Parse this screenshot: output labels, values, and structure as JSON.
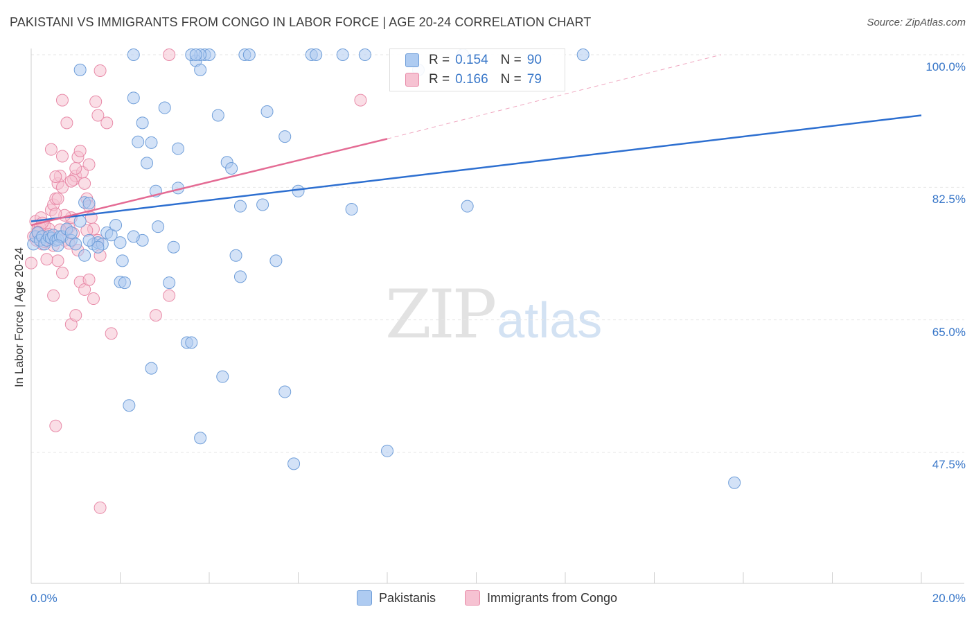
{
  "title": "PAKISTANI VS IMMIGRANTS FROM CONGO IN LABOR FORCE | AGE 20-24 CORRELATION CHART",
  "source": "Source: ZipAtlas.com",
  "watermark": {
    "zip": "ZIP",
    "atlas": "atlas"
  },
  "colors": {
    "blue_fill": "#aecbf1",
    "blue_stroke": "#6f9ed9",
    "blue_line": "#2d6fd0",
    "pink_fill": "#f6c2d2",
    "pink_stroke": "#e88aa8",
    "pink_line": "#e46b94",
    "grid": "#e6e6e6",
    "tick_label": "#3a78c9"
  },
  "legend": {
    "rows": [
      {
        "r_label": "R =",
        "r": "0.154",
        "n_label": "N =",
        "n": "90",
        "color": "#aecbf1"
      },
      {
        "r_label": "R =",
        "r": "0.166",
        "n_label": "N =",
        "n": "79",
        "color": "#f6c2d2"
      }
    ]
  },
  "bottom_legend": [
    {
      "label": "Pakistanis",
      "color": "#aecbf1"
    },
    {
      "label": "Immigrants from Congo",
      "color": "#f6c2d2"
    }
  ],
  "chart_data": {
    "type": "scatter",
    "title": "PAKISTANI VS IMMIGRANTS FROM CONGO IN LABOR FORCE | AGE 20-24 CORRELATION CHART",
    "xlabel": "",
    "ylabel": "In Labor Force | Age 20-24",
    "xlim": [
      0,
      20
    ],
    "ylim": [
      32,
      102
    ],
    "x_tick_labels": [
      {
        "value": 0,
        "label": "0.0%"
      },
      {
        "value": 20,
        "label": "20.0%"
      }
    ],
    "y_ticks": [
      {
        "value": 100,
        "label": "100.0%"
      },
      {
        "value": 82.5,
        "label": "82.5%"
      },
      {
        "value": 65,
        "label": "65.0%"
      },
      {
        "value": 47.5,
        "label": "47.5%"
      }
    ],
    "series": [
      {
        "name": "Pakistanis",
        "r": 0.154,
        "n": 90,
        "trend": {
          "x0": 0,
          "y0": 78.0,
          "x1": 20,
          "y1": 92.0
        },
        "points": [
          [
            0.05,
            75.0
          ],
          [
            0.1,
            76.0
          ],
          [
            0.15,
            76.5
          ],
          [
            0.2,
            75.5
          ],
          [
            0.25,
            76.0
          ],
          [
            0.3,
            75.0
          ],
          [
            0.35,
            75.5
          ],
          [
            0.4,
            76.0
          ],
          [
            0.45,
            75.8
          ],
          [
            0.5,
            76.2
          ],
          [
            0.55,
            75.5
          ],
          [
            0.6,
            75.6
          ],
          [
            0.65,
            76.0
          ],
          [
            0.7,
            76.0
          ],
          [
            0.8,
            77.0
          ],
          [
            0.9,
            75.5
          ],
          [
            1.0,
            75.0
          ],
          [
            1.1,
            78.0
          ],
          [
            1.2,
            80.5
          ],
          [
            1.3,
            80.4
          ],
          [
            1.4,
            75.0
          ],
          [
            1.5,
            75.2
          ],
          [
            1.6,
            75.0
          ],
          [
            1.7,
            76.5
          ],
          [
            1.8,
            76.2
          ],
          [
            1.9,
            77.5
          ],
          [
            2.0,
            75.2
          ],
          [
            1.2,
            73.5
          ],
          [
            2.05,
            72.8
          ],
          [
            2.0,
            70.0
          ],
          [
            2.1,
            69.9
          ],
          [
            2.3,
            94.3
          ],
          [
            2.4,
            88.5
          ],
          [
            2.5,
            91.0
          ],
          [
            2.6,
            85.7
          ],
          [
            2.7,
            88.4
          ],
          [
            2.8,
            82.0
          ],
          [
            2.85,
            77.3
          ],
          [
            2.5,
            75.5
          ],
          [
            3.0,
            93.0
          ],
          [
            3.1,
            69.9
          ],
          [
            3.2,
            74.6
          ],
          [
            3.3,
            87.6
          ],
          [
            3.3,
            82.4
          ],
          [
            3.5,
            62.0
          ],
          [
            3.6,
            62.0
          ],
          [
            3.7,
            99.2
          ],
          [
            3.8,
            98.0
          ],
          [
            3.9,
            100.0
          ],
          [
            4.0,
            100.0
          ],
          [
            3.8,
            100.0
          ],
          [
            4.2,
            92.0
          ],
          [
            4.3,
            57.5
          ],
          [
            4.4,
            85.8
          ],
          [
            4.5,
            85.0
          ],
          [
            4.6,
            73.5
          ],
          [
            4.7,
            80.0
          ],
          [
            4.8,
            100.0
          ],
          [
            4.9,
            100.0
          ],
          [
            5.2,
            80.2
          ],
          [
            5.3,
            92.5
          ],
          [
            5.5,
            72.8
          ],
          [
            5.7,
            89.2
          ],
          [
            5.7,
            55.5
          ],
          [
            5.9,
            46.0
          ],
          [
            6.0,
            82.0
          ],
          [
            6.3,
            100.0
          ],
          [
            6.4,
            100.0
          ],
          [
            7.0,
            100.0
          ],
          [
            7.2,
            79.6
          ],
          [
            7.5,
            100.0
          ],
          [
            8.0,
            47.7
          ],
          [
            8.7,
            98.0
          ],
          [
            9.7,
            100.0
          ],
          [
            9.8,
            80.0
          ],
          [
            12.4,
            100.0
          ],
          [
            15.8,
            43.5
          ],
          [
            1.1,
            98.0
          ],
          [
            2.3,
            100.0
          ],
          [
            3.6,
            100.0
          ],
          [
            3.7,
            100.0
          ],
          [
            4.7,
            70.7
          ],
          [
            2.7,
            58.6
          ],
          [
            2.2,
            53.7
          ],
          [
            3.8,
            49.4
          ],
          [
            0.6,
            74.8
          ],
          [
            1.5,
            74.6
          ],
          [
            0.9,
            76.5
          ],
          [
            1.3,
            75.5
          ],
          [
            2.3,
            76.0
          ]
        ]
      },
      {
        "name": "Immigrants from Congo",
        "r": 0.166,
        "n": 79,
        "trend": {
          "x0": 0,
          "y0": 77.5,
          "x1": 8.0,
          "y1": 88.9
        },
        "trend_dashed": {
          "x0": 8.0,
          "y0": 88.9,
          "x1": 15.5,
          "y1": 100.0
        },
        "points": [
          [
            0.0,
            72.5
          ],
          [
            0.05,
            76.0
          ],
          [
            0.1,
            78.0
          ],
          [
            0.12,
            75.5
          ],
          [
            0.15,
            77.0
          ],
          [
            0.2,
            76.5
          ],
          [
            0.22,
            78.5
          ],
          [
            0.25,
            75.0
          ],
          [
            0.3,
            77.5
          ],
          [
            0.32,
            76.2
          ],
          [
            0.35,
            75.8
          ],
          [
            0.4,
            77.0
          ],
          [
            0.45,
            79.5
          ],
          [
            0.5,
            80.2
          ],
          [
            0.55,
            81.0
          ],
          [
            0.6,
            83.0
          ],
          [
            0.65,
            84.0
          ],
          [
            0.7,
            82.5
          ],
          [
            0.75,
            75.5
          ],
          [
            0.8,
            76.8
          ],
          [
            0.85,
            77.2
          ],
          [
            0.9,
            78.5
          ],
          [
            0.95,
            83.5
          ],
          [
            1.0,
            84.0
          ],
          [
            1.05,
            86.5
          ],
          [
            1.1,
            87.3
          ],
          [
            1.15,
            84.5
          ],
          [
            1.2,
            83.0
          ],
          [
            1.25,
            81.0
          ],
          [
            1.3,
            80.0
          ],
          [
            1.35,
            78.5
          ],
          [
            1.4,
            77.0
          ],
          [
            1.5,
            75.5
          ],
          [
            1.55,
            73.5
          ],
          [
            0.6,
            72.8
          ],
          [
            0.7,
            71.2
          ],
          [
            0.5,
            68.2
          ],
          [
            0.9,
            64.4
          ],
          [
            1.0,
            65.6
          ],
          [
            1.1,
            70.0
          ],
          [
            1.2,
            69.0
          ],
          [
            1.3,
            70.3
          ],
          [
            1.4,
            67.8
          ],
          [
            1.8,
            63.2
          ],
          [
            2.8,
            65.6
          ],
          [
            3.1,
            68.2
          ],
          [
            0.55,
            51.0
          ],
          [
            1.55,
            40.2
          ],
          [
            1.5,
            92.0
          ],
          [
            1.45,
            93.8
          ],
          [
            1.7,
            91.0
          ],
          [
            1.55,
            97.9
          ],
          [
            0.7,
            94.0
          ],
          [
            0.8,
            91.0
          ],
          [
            0.45,
            87.5
          ],
          [
            0.7,
            86.6
          ],
          [
            1.0,
            85.0
          ],
          [
            1.3,
            85.5
          ],
          [
            0.55,
            83.9
          ],
          [
            0.9,
            83.3
          ],
          [
            0.6,
            81.0
          ],
          [
            3.1,
            100.0
          ],
          [
            7.4,
            94.0
          ],
          [
            0.1,
            76.0
          ],
          [
            0.2,
            77.2
          ],
          [
            0.3,
            75.3
          ],
          [
            0.4,
            76.3
          ],
          [
            0.5,
            74.8
          ],
          [
            0.65,
            76.9
          ],
          [
            0.75,
            78.8
          ],
          [
            0.85,
            75.1
          ],
          [
            0.95,
            76.4
          ],
          [
            1.05,
            74.2
          ],
          [
            0.35,
            73.0
          ],
          [
            0.55,
            79.0
          ],
          [
            0.25,
            77.8
          ],
          [
            0.15,
            76.6
          ],
          [
            0.45,
            75.7
          ],
          [
            1.25,
            76.8
          ]
        ]
      }
    ]
  }
}
